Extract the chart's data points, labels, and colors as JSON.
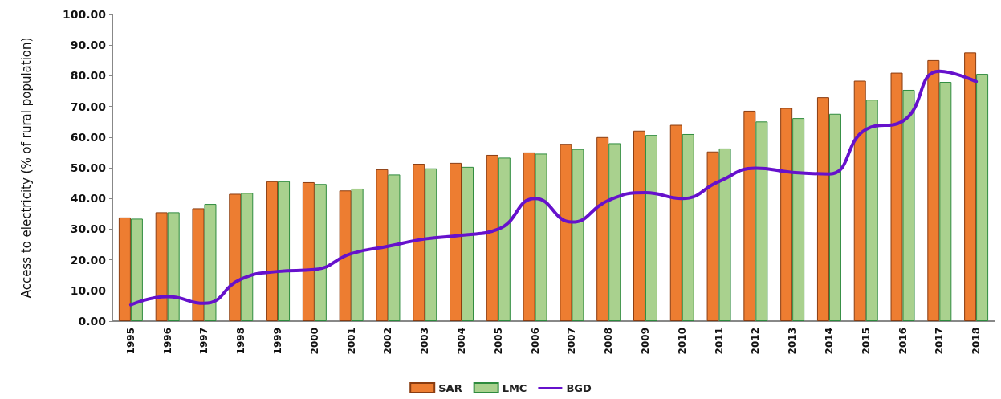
{
  "chart_data": {
    "type": "bar",
    "ylabel": "Access to electricity (% of rural population)",
    "categories": [
      "1995",
      "1996",
      "1997",
      "1998",
      "1999",
      "2000",
      "2001",
      "2002",
      "2003",
      "2004",
      "2005",
      "2006",
      "2007",
      "2008",
      "2009",
      "2010",
      "2011",
      "2012",
      "2013",
      "2014",
      "2015",
      "2016",
      "2017",
      "2018"
    ],
    "series": [
      {
        "name": "SAR",
        "color": "#ed7d31",
        "values": [
          33.8,
          35.5,
          36.8,
          41.5,
          45.6,
          45.3,
          42.6,
          49.5,
          51.3,
          51.6,
          54.2,
          55.0,
          57.8,
          60.0,
          62.1,
          64.0,
          55.3,
          68.6,
          69.5,
          73.0,
          78.4,
          81.0,
          85.1,
          87.6
        ]
      },
      {
        "name": "LMC",
        "color": "#a9d18e",
        "values": [
          33.4,
          35.5,
          38.2,
          41.8,
          45.6,
          44.7,
          43.2,
          47.8,
          49.8,
          50.3,
          53.3,
          54.6,
          56.1,
          58.0,
          60.7,
          61.0,
          56.3,
          65.1,
          66.2,
          67.6,
          72.2,
          75.4,
          78.0,
          80.6
        ]
      },
      {
        "name": "BGD",
        "type": "line",
        "color": "#6611cc",
        "values": [
          5.3,
          8.0,
          5.8,
          13.7,
          16.2,
          16.8,
          22.0,
          24.4,
          26.8,
          28.0,
          30.0,
          40.0,
          32.3,
          39.4,
          41.9,
          40.0,
          45.5,
          49.9,
          48.5,
          48.0,
          62.5,
          65.2,
          81.5,
          78.1
        ]
      }
    ],
    "ylim": [
      0,
      100
    ],
    "yticks": [
      {
        "value": 0,
        "label": "0.00"
      },
      {
        "value": 10,
        "label": "10.00"
      },
      {
        "value": 20,
        "label": "20.00"
      },
      {
        "value": 30,
        "label": "30.00"
      },
      {
        "value": 40,
        "label": "40.00"
      },
      {
        "value": 50,
        "label": "50.00"
      },
      {
        "value": 60,
        "label": "60.00"
      },
      {
        "value": 70,
        "label": "70.00"
      },
      {
        "value": 80,
        "label": "80.00"
      },
      {
        "value": 90,
        "label": "90.00"
      },
      {
        "value": 100,
        "label": "100.00"
      }
    ],
    "grid": false,
    "legend": "bottom",
    "marker": "none",
    "line_style": "solid"
  }
}
